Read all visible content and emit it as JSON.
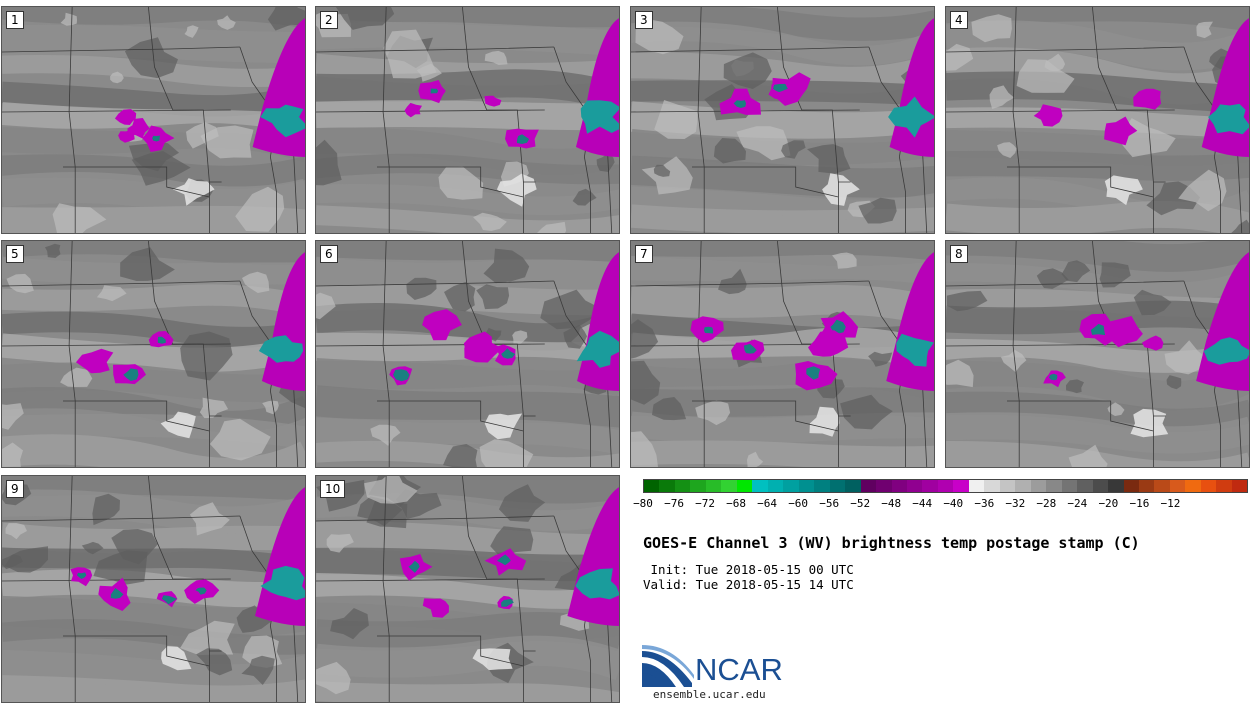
{
  "panels": [
    {
      "id": "1",
      "col": 0,
      "row": 0
    },
    {
      "id": "2",
      "col": 1,
      "row": 0
    },
    {
      "id": "3",
      "col": 2,
      "row": 0
    },
    {
      "id": "4",
      "col": 3,
      "row": 0
    },
    {
      "id": "5",
      "col": 0,
      "row": 1
    },
    {
      "id": "6",
      "col": 1,
      "row": 1
    },
    {
      "id": "7",
      "col": 2,
      "row": 1
    },
    {
      "id": "8",
      "col": 3,
      "row": 1
    },
    {
      "id": "9",
      "col": 0,
      "row": 2
    },
    {
      "id": "10",
      "col": 1,
      "row": 2
    }
  ],
  "colorbar": {
    "colors": [
      "#006400",
      "#0a7a0a",
      "#149014",
      "#1ea61e",
      "#28bc28",
      "#32d232",
      "#00e700",
      "#00c0c0",
      "#00b0b0",
      "#00a0a0",
      "#009090",
      "#008080",
      "#007070",
      "#006060",
      "#600060",
      "#700070",
      "#800080",
      "#900090",
      "#a000a0",
      "#b000b0",
      "#c800c8",
      "#f0f0f0",
      "#d8d8d8",
      "#c4c4c4",
      "#b0b0b0",
      "#9c9c9c",
      "#888888",
      "#747474",
      "#606060",
      "#4c4c4c",
      "#383838",
      "#7a2a10",
      "#9a3a14",
      "#ba4a18",
      "#d85a1c",
      "#f06a10",
      "#e85010",
      "#d03c10",
      "#c02a10"
    ],
    "ticks": [
      "−80",
      "−76",
      "−72",
      "−68",
      "−64",
      "−60",
      "−56",
      "−52",
      "−48",
      "−44",
      "−40",
      "−36",
      "−32",
      "−28",
      "−24",
      "−20",
      "−16",
      "−12"
    ]
  },
  "title": "GOES-E Channel 3 (WV) brightness temp postage stamp (C)",
  "init": " Init: Tue 2018-05-15 00 UTC",
  "valid": "Valid: Tue 2018-05-15 14 UTC",
  "logo": {
    "text": "NCAR",
    "url": "ensemble.ucar.edu"
  }
}
